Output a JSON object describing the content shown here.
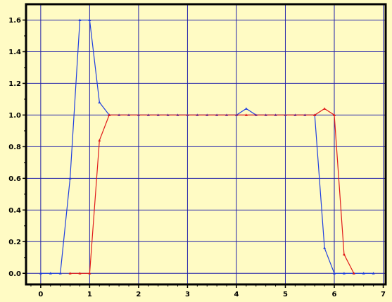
{
  "chart_data": {
    "type": "line",
    "title": "",
    "xlabel": "",
    "ylabel": "",
    "xlim": [
      -0.3,
      7.05
    ],
    "ylim": [
      -0.07,
      1.7
    ],
    "grid": true,
    "x_ticks": [
      0,
      1,
      2,
      3,
      4,
      5,
      6,
      7
    ],
    "y_ticks": [
      0.0,
      0.2,
      0.4,
      0.6,
      0.8,
      1.0,
      1.2,
      1.4,
      1.6
    ],
    "x_tick_labels": [
      "0",
      "1",
      "2",
      "3",
      "4",
      "5",
      "6",
      "7"
    ],
    "y_tick_labels": [
      "0.0",
      "0.2",
      "0.4",
      "0.6",
      "0.8",
      "1.0",
      "1.2",
      "1.4",
      "1.6"
    ],
    "colors": {
      "background": "#fffbc4",
      "plot_background": "#fffbc4",
      "grid": "#2222aa",
      "frame": "#000000",
      "series_blue": "#1f3fe0",
      "series_red": "#e01a1a"
    },
    "series": [
      {
        "color": "#1f3fe0",
        "x": [
          0,
          0.2,
          0.4,
          0.6,
          0.8,
          1.0,
          1.2,
          1.4,
          1.6,
          1.8,
          2.0,
          2.2,
          2.4,
          2.6,
          2.8,
          3.0,
          3.2,
          3.4,
          3.6,
          3.8,
          4.0,
          4.2,
          4.4,
          4.6,
          4.8,
          5.0,
          5.2,
          5.4,
          5.6,
          5.8,
          6.0,
          6.2,
          6.4,
          6.6,
          6.8
        ],
        "y": [
          0,
          0,
          0,
          0.6,
          1.6,
          1.6,
          1.08,
          1.0,
          1.0,
          1.0,
          1.0,
          1.0,
          1.0,
          1.0,
          1.0,
          1.0,
          1.0,
          1.0,
          1.0,
          1.0,
          1.0,
          1.04,
          1.0,
          1.0,
          1.0,
          1.0,
          1.0,
          1.0,
          1.0,
          0.16,
          0,
          0,
          0,
          0,
          0
        ]
      },
      {
        "color": "#e01a1a",
        "x": [
          0.6,
          0.8,
          1.0,
          1.2,
          1.4,
          4.2,
          5.6,
          5.8,
          6.0,
          6.2,
          6.4
        ],
        "y": [
          0,
          0,
          0,
          0.84,
          1.0,
          1.0,
          1.0,
          1.04,
          1.0,
          0.12,
          0
        ]
      }
    ]
  }
}
